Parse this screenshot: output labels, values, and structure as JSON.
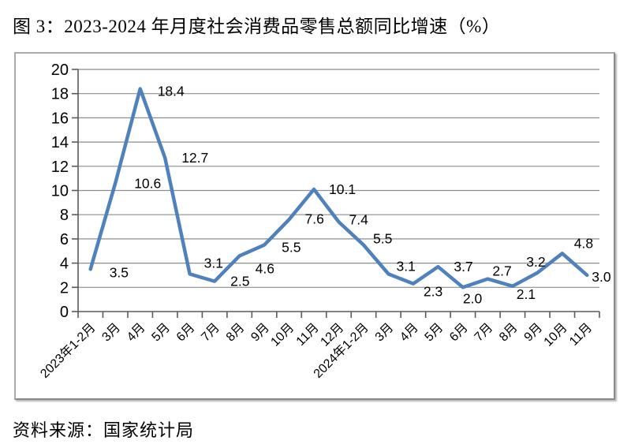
{
  "title": "图 3：2023-2024 年月度社会消费品零售总额同比增速（%）",
  "source": "资料来源：国家统计局",
  "chart_data": {
    "type": "line",
    "title": "",
    "xlabel": "",
    "ylabel": "",
    "categories": [
      "2023年1-2月",
      "3月",
      "4月",
      "5月",
      "6月",
      "7月",
      "8月",
      "9月",
      "10月",
      "11月",
      "12月",
      "2024年1-2月",
      "3月",
      "4月",
      "5月",
      "6月",
      "7月",
      "8月",
      "9月",
      "10月",
      "11月"
    ],
    "values": [
      3.5,
      10.6,
      18.4,
      12.7,
      3.1,
      2.5,
      4.6,
      5.5,
      7.6,
      10.1,
      7.4,
      5.5,
      3.1,
      2.3,
      3.7,
      2.0,
      2.7,
      2.1,
      3.2,
      4.8,
      3.0
    ],
    "ylim": [
      0,
      20
    ],
    "y_tick_step": 2,
    "grid": true,
    "legend": false,
    "data_labels": true,
    "label_decimals": 1,
    "line_color": "#4f81bd"
  }
}
